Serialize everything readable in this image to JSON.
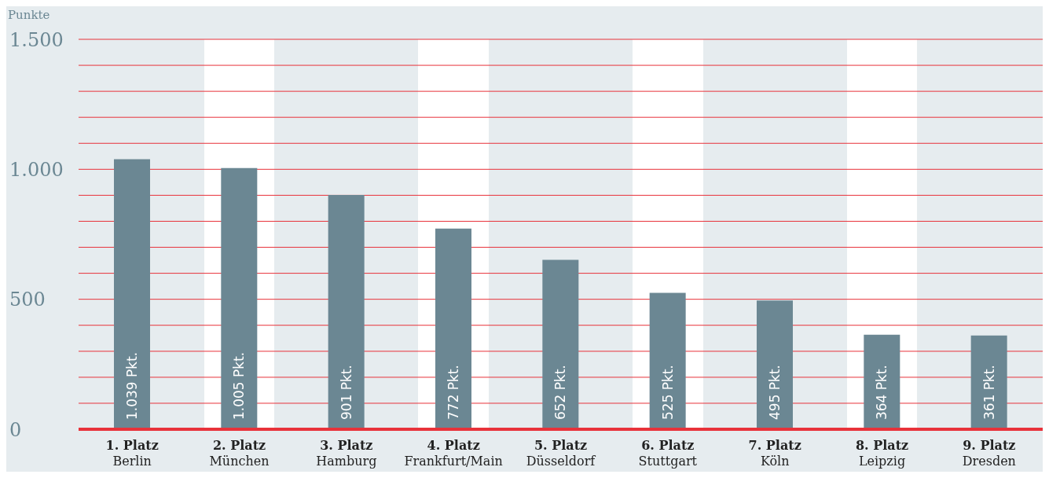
{
  "chart_data": {
    "type": "bar",
    "ylabel": "Punkte",
    "categories": [
      "1. Platz\nBerlin",
      "2. Platz\nMünchen",
      "3. Platz\nHamburg",
      "4. Platz\nFrankfurt/Main",
      "5. Platz\nDüsseldorf",
      "6. Platz\nStuttgart",
      "7. Platz\nKöln",
      "8. Platz\nLeipzig",
      "9. Platz\nDresden"
    ],
    "values": [
      1039,
      1005,
      901,
      772,
      652,
      525,
      495,
      364,
      361
    ],
    "value_labels": [
      "1.039 Pkt.",
      "1.005 Pkt.",
      "901 Pkt.",
      "772 Pkt.",
      "652 Pkt.",
      "525 Pkt.",
      "495 Pkt.",
      "364 Pkt.",
      "361 Pkt."
    ],
    "color": "#6b8793",
    "ylim": [
      0,
      1500
    ],
    "yticks": [
      0,
      {
        "value": 100,
        "label": null
      },
      {
        "value": 200,
        "label": null
      },
      {
        "value": 300,
        "label": null
      },
      {
        "value": 400,
        "label": null
      },
      500,
      {
        "value": 600,
        "label": null
      },
      {
        "value": 700,
        "label": null
      },
      {
        "value": 800,
        "label": null
      },
      {
        "value": 900,
        "label": null
      },
      {
        "value": 1000,
        "label": "1.000"
      },
      {
        "value": 1100,
        "label": null
      },
      {
        "value": 1200,
        "label": null
      },
      {
        "value": 1300,
        "label": null
      },
      {
        "value": 1400,
        "label": null
      },
      {
        "value": 1500,
        "label": "1.500"
      }
    ],
    "grid": "y"
  }
}
